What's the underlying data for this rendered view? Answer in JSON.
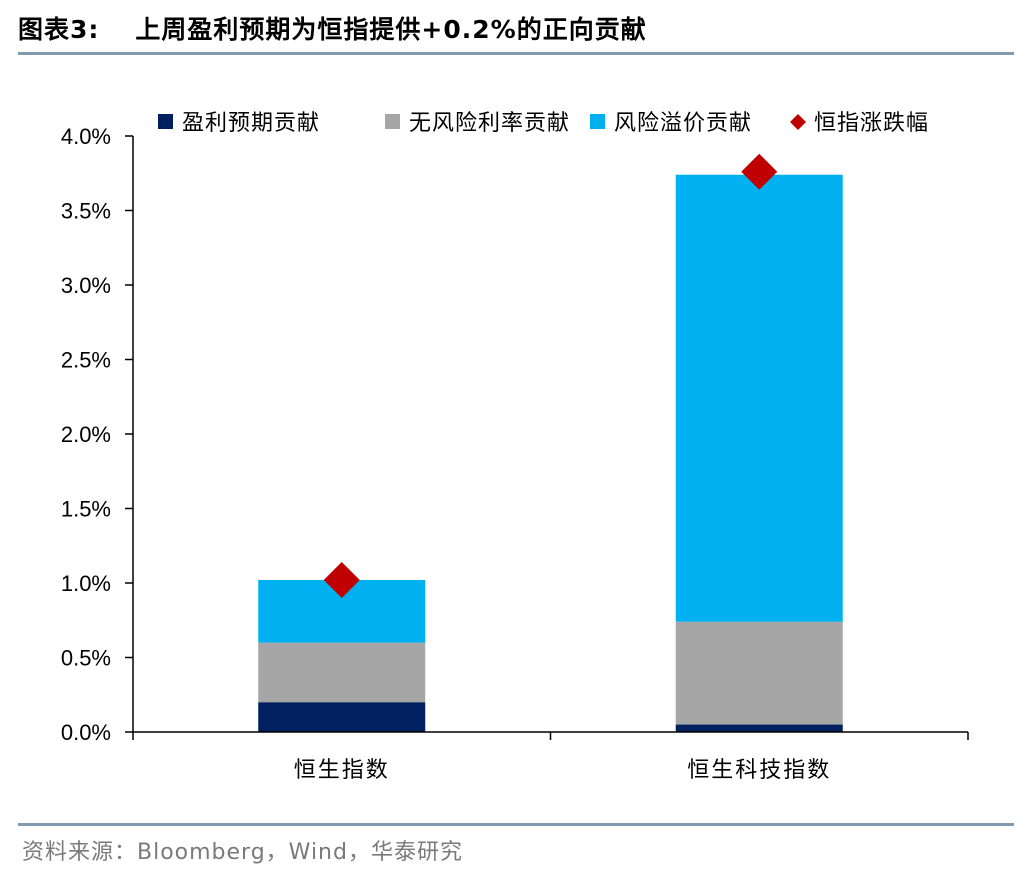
{
  "header": {
    "figure_label": "图表3:",
    "title": "上周盈利预期为恒指提供+0.2%的正向贡献"
  },
  "source": "资料来源：Bloomberg，Wind，华泰研究",
  "colors": {
    "earnings": "#002060",
    "riskfree": "#a6a6a6",
    "premium": "#00b0f0",
    "index_change": "#c00000",
    "axis": "#000000",
    "rule": "#7f9bb3"
  },
  "chart_data": {
    "type": "bar",
    "stacked": true,
    "categories": [
      "恒生指数",
      "恒生科技指数"
    ],
    "series": [
      {
        "name": "盈利预期贡献",
        "kind": "bar",
        "values": [
          0.2,
          0.05
        ]
      },
      {
        "name": "无风险利率贡献",
        "kind": "bar",
        "values": [
          0.4,
          0.69
        ]
      },
      {
        "name": "风险溢价贡献",
        "kind": "bar",
        "values": [
          0.42,
          3.0
        ]
      },
      {
        "name": "恒指涨跌幅",
        "kind": "marker",
        "values": [
          1.02,
          3.76
        ]
      }
    ],
    "ylim": [
      0,
      4.0
    ],
    "yticks": [
      "0.0%",
      "0.5%",
      "1.0%",
      "1.5%",
      "2.0%",
      "2.5%",
      "3.0%",
      "3.5%",
      "4.0%"
    ],
    "ytick_values": [
      0,
      0.5,
      1.0,
      1.5,
      2.0,
      2.5,
      3.0,
      3.5,
      4.0
    ],
    "legend_position": "top",
    "grid": false
  }
}
